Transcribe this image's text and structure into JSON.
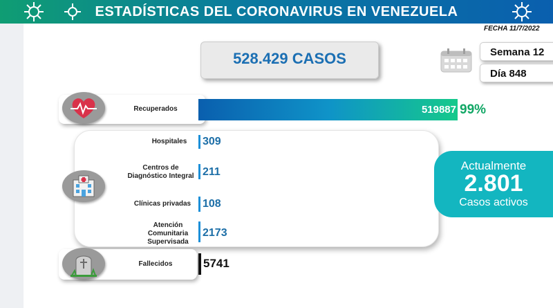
{
  "header": {
    "title": "ESTADÍSTICAS DEL CORONAVIRUS EN VENEZUELA",
    "date": "FECHA 11/7/2022"
  },
  "summary": {
    "total_cases": "528.429 CASOS",
    "week": "Semana 12",
    "day": "Día 848"
  },
  "recovered": {
    "label": "Recuperados",
    "value": "519887",
    "percent": "99%"
  },
  "hospital_rows": [
    {
      "label": "Hospitales",
      "value": "309"
    },
    {
      "label": "Centros de Diagnóstico Integral",
      "value": "211"
    },
    {
      "label": "Clínicas privadas",
      "value": "108"
    },
    {
      "label": "Atención Comunitaria Supervisada",
      "value": "2173"
    }
  ],
  "active": {
    "title": "Actualmente",
    "value": "2.801",
    "subtitle": "Casos activos"
  },
  "deceased": {
    "label": "Fallecidos",
    "value": "5741"
  },
  "colors": {
    "banner_start": "#0f9d73",
    "banner_end": "#0a5fae",
    "accent_blue": "#1c6ea7",
    "accent_green": "#11a765",
    "active_teal": "#13b6c0"
  },
  "icons": [
    "coronavirus-icon",
    "calendar-icon",
    "heart-pulse-icon",
    "hospital-icon",
    "tombstone-icon"
  ]
}
